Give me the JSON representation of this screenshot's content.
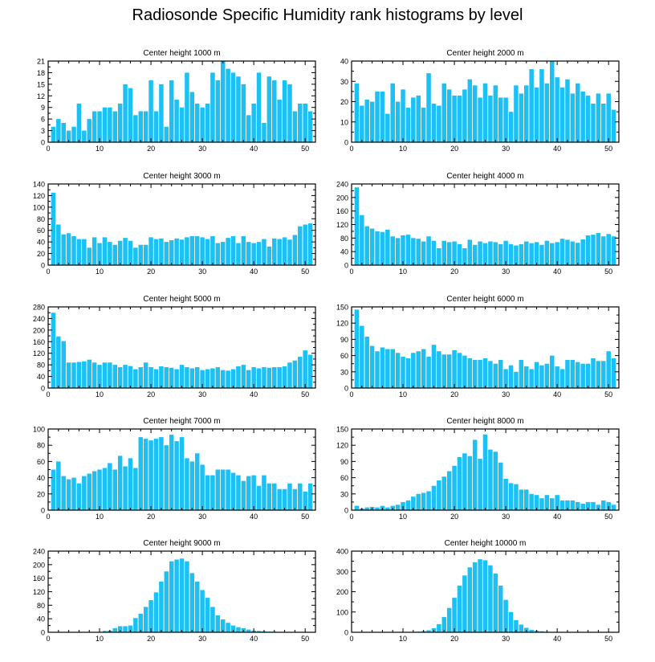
{
  "title": "Radiosonde Specific Humidity rank histograms by level",
  "bar_color": "#1CC0F2",
  "chart_data": [
    {
      "type": "bar",
      "title": "Center height 1000 m",
      "x": [
        1,
        2,
        3,
        4,
        5,
        6,
        7,
        8,
        9,
        10,
        11,
        12,
        13,
        14,
        15,
        16,
        17,
        18,
        19,
        20,
        21,
        22,
        23,
        24,
        25,
        26,
        27,
        28,
        29,
        30,
        31,
        32,
        33,
        34,
        35,
        36,
        37,
        38,
        39,
        40,
        41,
        42,
        43,
        44,
        45,
        46,
        47,
        48,
        49,
        50,
        51
      ],
      "values": [
        4,
        6,
        5,
        3,
        4,
        10,
        3,
        6,
        8,
        8,
        9,
        9,
        8,
        10,
        15,
        14,
        7,
        8,
        8,
        16,
        8,
        15,
        4,
        16,
        11,
        9,
        18,
        13,
        10,
        9,
        10,
        18,
        16,
        21,
        19,
        18,
        17,
        15,
        7,
        10,
        18,
        5,
        17,
        16,
        11,
        16,
        15,
        8,
        10,
        10,
        8
      ],
      "xlim": [
        0,
        52
      ],
      "ylim": [
        0,
        21
      ],
      "xticks": [
        0,
        10,
        20,
        30,
        40,
        50
      ],
      "yticks": [
        0,
        3,
        6,
        9,
        12,
        15,
        18,
        21
      ]
    },
    {
      "type": "bar",
      "title": "Center height 2000 m",
      "x": [
        1,
        2,
        3,
        4,
        5,
        6,
        7,
        8,
        9,
        10,
        11,
        12,
        13,
        14,
        15,
        16,
        17,
        18,
        19,
        20,
        21,
        22,
        23,
        24,
        25,
        26,
        27,
        28,
        29,
        30,
        31,
        32,
        33,
        34,
        35,
        36,
        37,
        38,
        39,
        40,
        41,
        42,
        43,
        44,
        45,
        46,
        47,
        48,
        49,
        50,
        51
      ],
      "values": [
        29,
        18,
        21,
        20,
        25,
        25,
        14,
        29,
        20,
        26,
        17,
        22,
        23,
        17,
        34,
        19,
        18,
        29,
        26,
        23,
        23,
        26,
        31,
        28,
        22,
        29,
        23,
        28,
        22,
        22,
        15,
        28,
        24,
        28,
        36,
        27,
        36,
        29,
        40,
        32,
        27,
        31,
        24,
        29,
        25,
        23,
        19,
        24,
        19,
        24,
        16
      ],
      "xlim": [
        0,
        52
      ],
      "ylim": [
        0,
        40
      ],
      "xticks": [
        0,
        10,
        20,
        30,
        40,
        50
      ],
      "yticks": [
        0,
        10,
        20,
        30,
        40
      ]
    },
    {
      "type": "bar",
      "title": "Center height 3000 m",
      "x": [
        1,
        2,
        3,
        4,
        5,
        6,
        7,
        8,
        9,
        10,
        11,
        12,
        13,
        14,
        15,
        16,
        17,
        18,
        19,
        20,
        21,
        22,
        23,
        24,
        25,
        26,
        27,
        28,
        29,
        30,
        31,
        32,
        33,
        34,
        35,
        36,
        37,
        38,
        39,
        40,
        41,
        42,
        43,
        44,
        45,
        46,
        47,
        48,
        49,
        50,
        51
      ],
      "values": [
        125,
        70,
        53,
        55,
        50,
        45,
        45,
        30,
        48,
        38,
        48,
        40,
        35,
        42,
        47,
        42,
        30,
        35,
        35,
        48,
        45,
        46,
        40,
        43,
        46,
        44,
        48,
        50,
        50,
        48,
        45,
        50,
        38,
        40,
        47,
        50,
        38,
        50,
        40,
        38,
        40,
        45,
        32,
        46,
        45,
        48,
        44,
        52,
        67,
        70,
        72
      ],
      "xlim": [
        0,
        52
      ],
      "ylim": [
        0,
        140
      ],
      "xticks": [
        0,
        10,
        20,
        30,
        40,
        50
      ],
      "yticks": [
        0,
        20,
        40,
        60,
        80,
        100,
        120,
        140
      ]
    },
    {
      "type": "bar",
      "title": "Center height 4000 m",
      "x": [
        1,
        2,
        3,
        4,
        5,
        6,
        7,
        8,
        9,
        10,
        11,
        12,
        13,
        14,
        15,
        16,
        17,
        18,
        19,
        20,
        21,
        22,
        23,
        24,
        25,
        26,
        27,
        28,
        29,
        30,
        31,
        32,
        33,
        34,
        35,
        36,
        37,
        38,
        39,
        40,
        41,
        42,
        43,
        44,
        45,
        46,
        47,
        48,
        49,
        50,
        51
      ],
      "values": [
        230,
        148,
        115,
        108,
        100,
        98,
        105,
        85,
        80,
        88,
        90,
        80,
        78,
        70,
        85,
        72,
        50,
        72,
        68,
        70,
        62,
        50,
        75,
        60,
        70,
        65,
        70,
        68,
        62,
        72,
        62,
        58,
        62,
        70,
        65,
        68,
        60,
        72,
        65,
        68,
        78,
        75,
        70,
        66,
        76,
        88,
        90,
        95,
        85,
        92,
        85
      ],
      "xlim": [
        0,
        52
      ],
      "ylim": [
        0,
        240
      ],
      "xticks": [
        0,
        10,
        20,
        30,
        40,
        50
      ],
      "yticks": [
        0,
        40,
        80,
        120,
        160,
        200,
        240
      ]
    },
    {
      "type": "bar",
      "title": "Center height 5000 m",
      "x": [
        1,
        2,
        3,
        4,
        5,
        6,
        7,
        8,
        9,
        10,
        11,
        12,
        13,
        14,
        15,
        16,
        17,
        18,
        19,
        20,
        21,
        22,
        23,
        24,
        25,
        26,
        27,
        28,
        29,
        30,
        31,
        32,
        33,
        34,
        35,
        36,
        37,
        38,
        39,
        40,
        41,
        42,
        43,
        44,
        45,
        46,
        47,
        48,
        49,
        50,
        51
      ],
      "values": [
        260,
        178,
        162,
        88,
        88,
        90,
        92,
        98,
        88,
        80,
        88,
        88,
        80,
        72,
        80,
        76,
        65,
        72,
        88,
        72,
        65,
        75,
        72,
        70,
        65,
        80,
        72,
        68,
        72,
        62,
        65,
        68,
        72,
        62,
        60,
        65,
        75,
        80,
        62,
        72,
        68,
        72,
        70,
        72,
        72,
        75,
        88,
        95,
        108,
        130,
        115
      ],
      "xlim": [
        0,
        52
      ],
      "ylim": [
        0,
        280
      ],
      "xticks": [
        0,
        10,
        20,
        30,
        40,
        50
      ],
      "yticks": [
        0,
        40,
        80,
        120,
        160,
        200,
        240,
        280
      ]
    },
    {
      "type": "bar",
      "title": "Center height 6000 m",
      "x": [
        1,
        2,
        3,
        4,
        5,
        6,
        7,
        8,
        9,
        10,
        11,
        12,
        13,
        14,
        15,
        16,
        17,
        18,
        19,
        20,
        21,
        22,
        23,
        24,
        25,
        26,
        27,
        28,
        29,
        30,
        31,
        32,
        33,
        34,
        35,
        36,
        37,
        38,
        39,
        40,
        41,
        42,
        43,
        44,
        45,
        46,
        47,
        48,
        49,
        50,
        51
      ],
      "values": [
        145,
        115,
        95,
        78,
        68,
        75,
        72,
        72,
        65,
        58,
        55,
        65,
        68,
        72,
        58,
        80,
        68,
        62,
        62,
        70,
        65,
        60,
        55,
        52,
        52,
        55,
        50,
        45,
        52,
        35,
        42,
        30,
        52,
        40,
        35,
        48,
        42,
        45,
        60,
        40,
        35,
        52,
        52,
        48,
        45,
        45,
        55,
        50,
        50,
        68,
        55
      ],
      "xlim": [
        0,
        52
      ],
      "ylim": [
        0,
        150
      ],
      "xticks": [
        0,
        10,
        20,
        30,
        40,
        50
      ],
      "yticks": [
        0,
        30,
        60,
        90,
        120,
        150
      ]
    },
    {
      "type": "bar",
      "title": "Center height 7000 m",
      "x": [
        1,
        2,
        3,
        4,
        5,
        6,
        7,
        8,
        9,
        10,
        11,
        12,
        13,
        14,
        15,
        16,
        17,
        18,
        19,
        20,
        21,
        22,
        23,
        24,
        25,
        26,
        27,
        28,
        29,
        30,
        31,
        32,
        33,
        34,
        35,
        36,
        37,
        38,
        39,
        40,
        41,
        42,
        43,
        44,
        45,
        46,
        47,
        48,
        49,
        50,
        51
      ],
      "values": [
        50,
        60,
        42,
        38,
        40,
        33,
        42,
        45,
        48,
        50,
        52,
        58,
        50,
        67,
        54,
        64,
        52,
        90,
        88,
        86,
        88,
        90,
        80,
        93,
        85,
        90,
        64,
        60,
        70,
        56,
        43,
        43,
        50,
        50,
        50,
        46,
        43,
        36,
        42,
        43,
        30,
        43,
        33,
        33,
        26,
        26,
        33,
        26,
        33,
        23,
        33
      ],
      "xlim": [
        0,
        52
      ],
      "ylim": [
        0,
        100
      ],
      "xticks": [
        0,
        10,
        20,
        30,
        40,
        50
      ],
      "yticks": [
        0,
        20,
        40,
        60,
        80,
        100
      ]
    },
    {
      "type": "bar",
      "title": "Center height 8000 m",
      "x": [
        1,
        2,
        3,
        4,
        5,
        6,
        7,
        8,
        9,
        10,
        11,
        12,
        13,
        14,
        15,
        16,
        17,
        18,
        19,
        20,
        21,
        22,
        23,
        24,
        25,
        26,
        27,
        28,
        29,
        30,
        31,
        32,
        33,
        34,
        35,
        36,
        37,
        38,
        39,
        40,
        41,
        42,
        43,
        44,
        45,
        46,
        47,
        48,
        49,
        50,
        51
      ],
      "values": [
        8,
        3,
        5,
        6,
        5,
        8,
        5,
        8,
        10,
        15,
        18,
        25,
        30,
        32,
        35,
        45,
        55,
        62,
        72,
        82,
        98,
        105,
        100,
        130,
        95,
        140,
        112,
        108,
        88,
        58,
        50,
        48,
        38,
        38,
        30,
        28,
        22,
        28,
        22,
        28,
        18,
        18,
        18,
        15,
        12,
        15,
        15,
        10,
        18,
        15,
        10
      ],
      "xlim": [
        0,
        52
      ],
      "ylim": [
        0,
        150
      ],
      "xticks": [
        0,
        10,
        20,
        30,
        40,
        50
      ],
      "yticks": [
        0,
        30,
        60,
        90,
        120,
        150
      ]
    },
    {
      "type": "bar",
      "title": "Center height 9000 m",
      "x": [
        1,
        2,
        3,
        4,
        5,
        6,
        7,
        8,
        9,
        10,
        11,
        12,
        13,
        14,
        15,
        16,
        17,
        18,
        19,
        20,
        21,
        22,
        23,
        24,
        25,
        26,
        27,
        28,
        29,
        30,
        31,
        32,
        33,
        34,
        35,
        36,
        37,
        38,
        39,
        40,
        41,
        42,
        43,
        44,
        45,
        46,
        47,
        48,
        49,
        50,
        51
      ],
      "values": [
        0,
        0,
        0,
        0,
        0,
        0,
        0,
        0,
        1,
        1,
        4,
        5,
        12,
        18,
        18,
        20,
        42,
        55,
        75,
        95,
        118,
        150,
        180,
        210,
        215,
        218,
        210,
        175,
        150,
        125,
        102,
        75,
        50,
        38,
        28,
        20,
        15,
        12,
        8,
        5,
        4,
        3,
        2,
        2,
        1,
        1,
        1,
        0,
        0,
        0,
        0
      ],
      "xlim": [
        0,
        52
      ],
      "ylim": [
        0,
        240
      ],
      "xticks": [
        0,
        10,
        20,
        30,
        40,
        50
      ],
      "yticks": [
        0,
        40,
        80,
        120,
        160,
        200,
        240
      ]
    },
    {
      "type": "bar",
      "title": "Center height 10000 m",
      "x": [
        1,
        2,
        3,
        4,
        5,
        6,
        7,
        8,
        9,
        10,
        11,
        12,
        13,
        14,
        15,
        16,
        17,
        18,
        19,
        20,
        21,
        22,
        23,
        24,
        25,
        26,
        27,
        28,
        29,
        30,
        31,
        32,
        33,
        34,
        35,
        36,
        37,
        38,
        39,
        40,
        41,
        42,
        43,
        44,
        45,
        46,
        47,
        48,
        49,
        50,
        51
      ],
      "values": [
        0,
        0,
        0,
        0,
        0,
        0,
        0,
        0,
        0,
        0,
        0,
        1,
        3,
        6,
        10,
        20,
        40,
        75,
        120,
        170,
        230,
        280,
        320,
        345,
        360,
        355,
        330,
        290,
        230,
        160,
        100,
        60,
        38,
        22,
        12,
        8,
        5,
        3,
        2,
        1,
        1,
        1,
        0,
        0,
        0,
        0,
        0,
        0,
        0,
        0,
        0
      ],
      "xlim": [
        0,
        52
      ],
      "ylim": [
        0,
        400
      ],
      "xticks": [
        0,
        10,
        20,
        30,
        40,
        50
      ],
      "yticks": [
        0,
        100,
        200,
        300,
        400
      ]
    }
  ]
}
